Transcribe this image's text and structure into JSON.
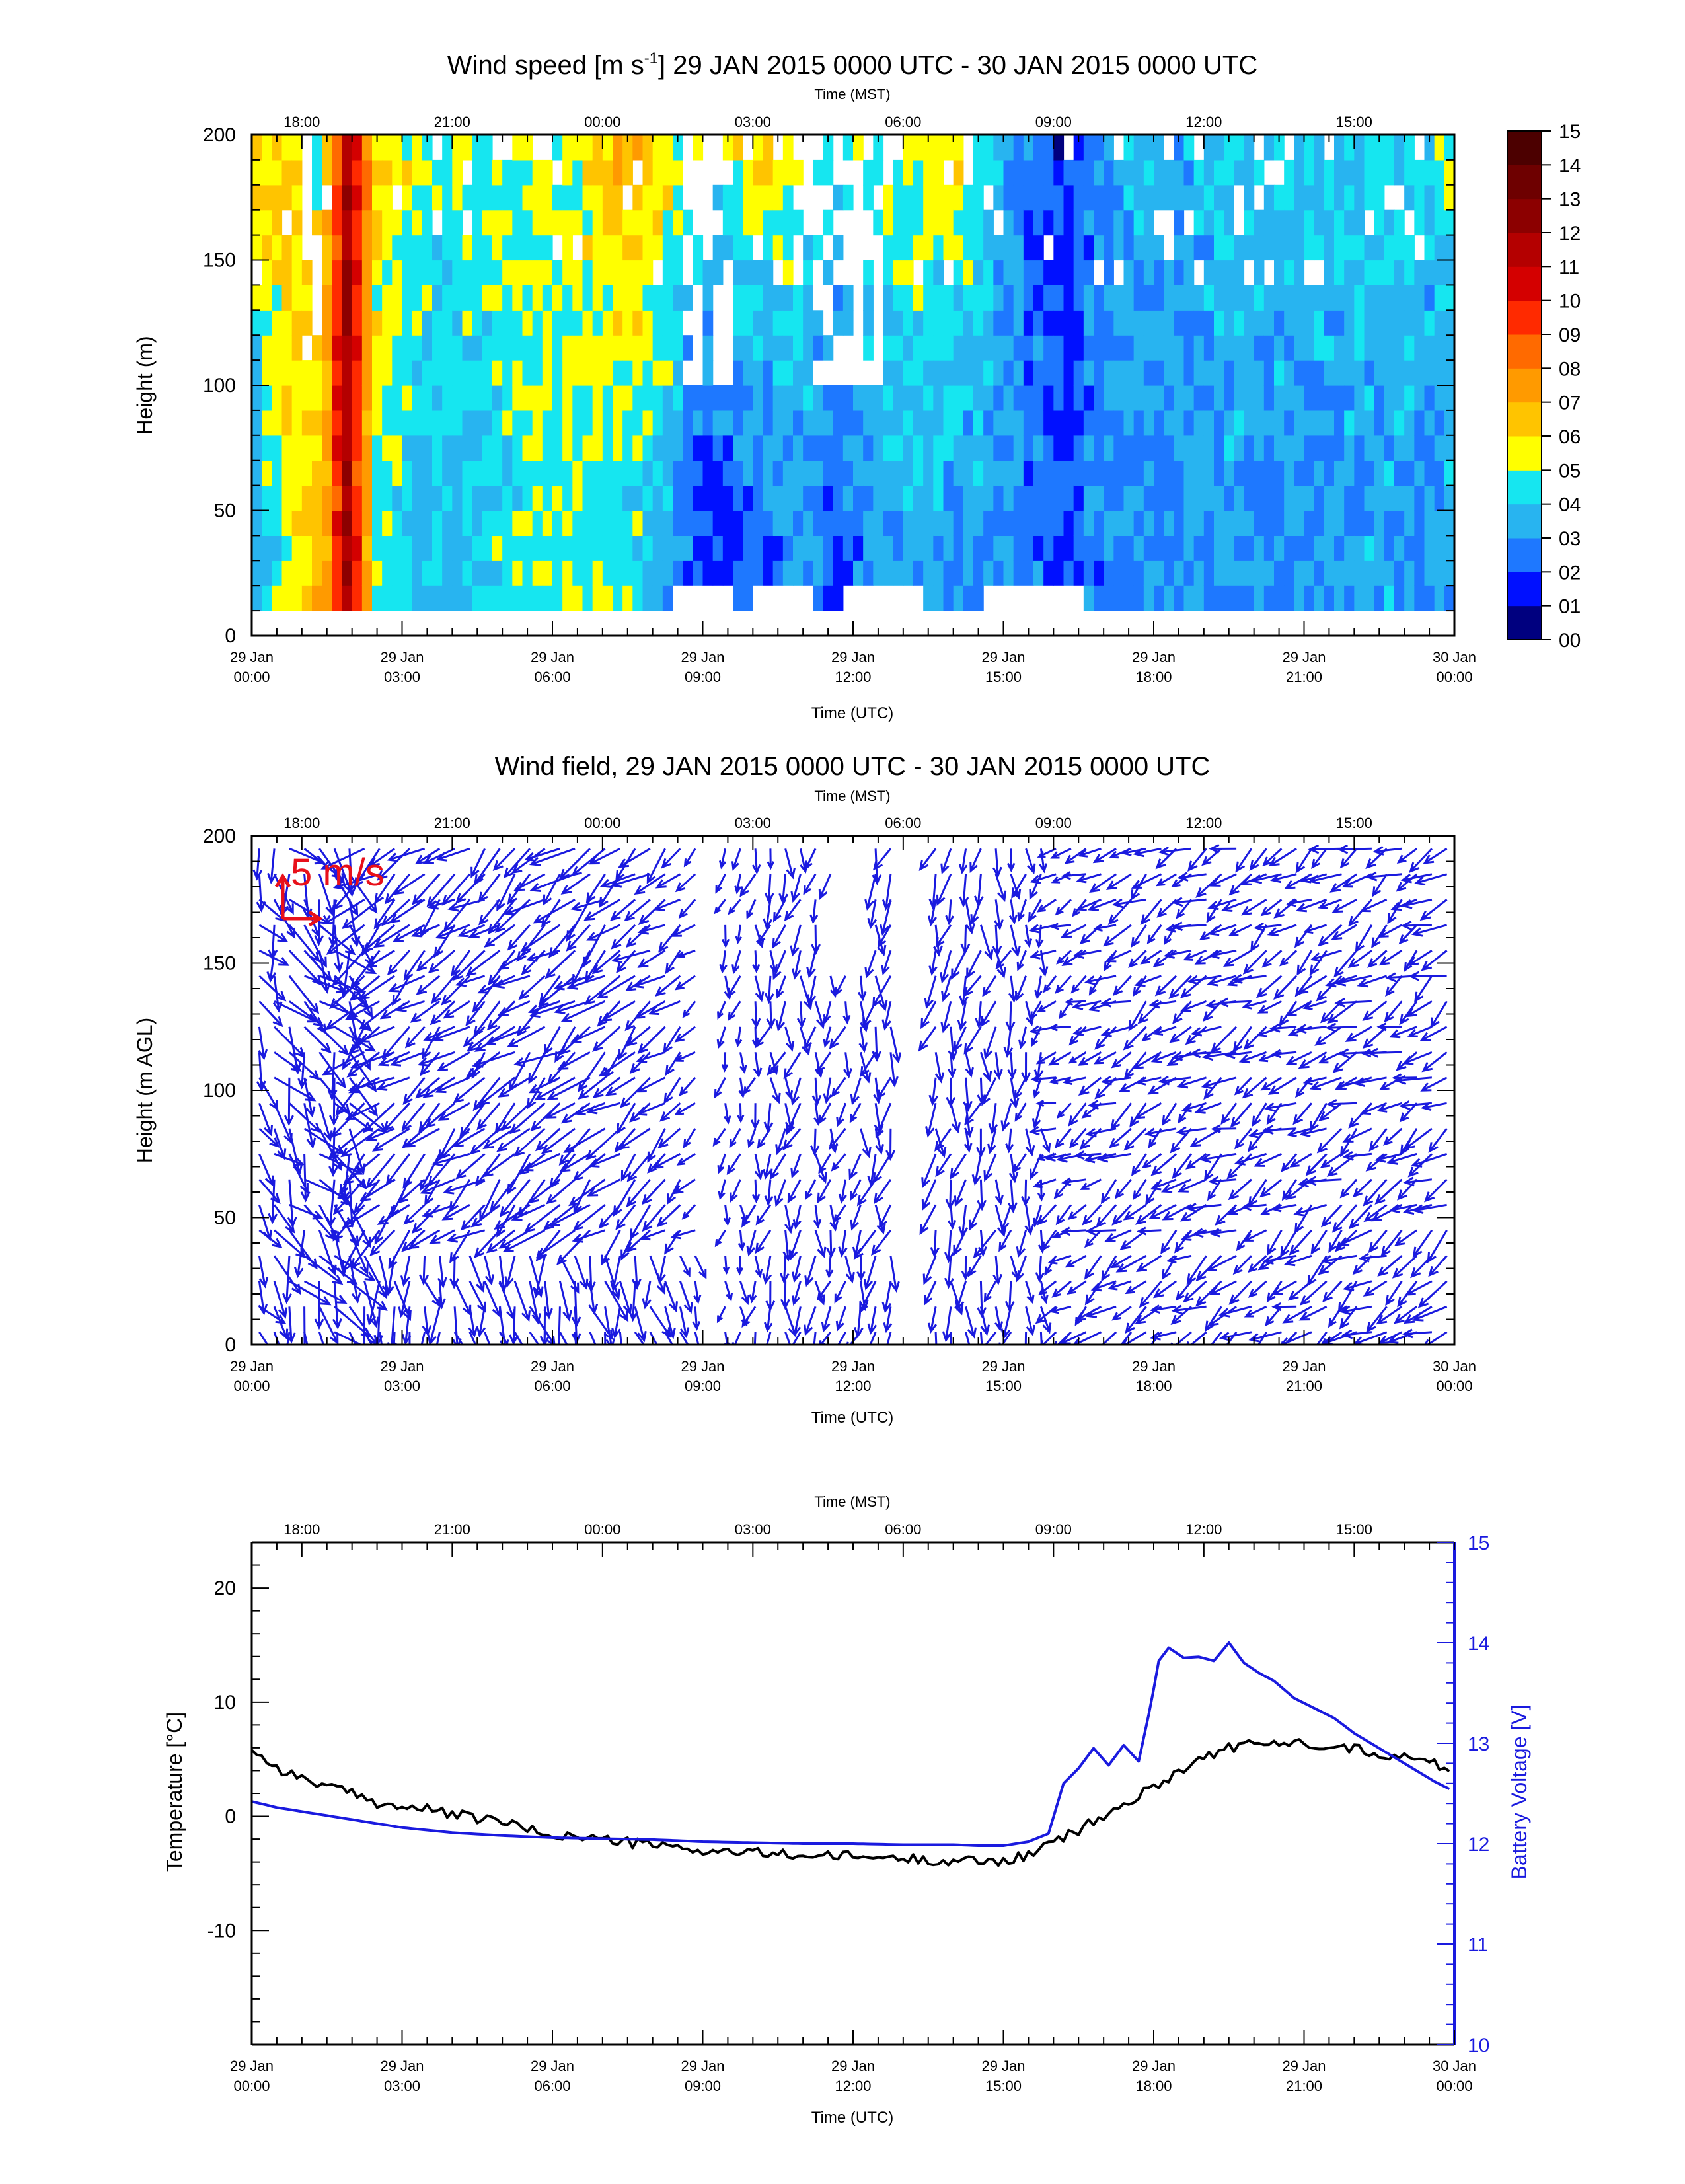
{
  "chart_data": [
    {
      "type": "heatmap",
      "title": "Wind speed [m s-1] 29 JAN 2015 0000 UTC - 30 JAN 2015 0000 UTC",
      "title_parts": {
        "pre": "Wind speed [m s",
        "sup": "-1",
        "post": "] 29 JAN 2015 0000 UTC - 30 JAN 2015 0000 UTC"
      },
      "xlabel": "Time (UTC)",
      "x2label": "Time (MST)",
      "ylabel": "Height (m)",
      "xlim_hours_utc": [
        0,
        24
      ],
      "ylim": [
        0,
        200
      ],
      "yticks": [
        0,
        50,
        100,
        150,
        200
      ],
      "xtick_labels": [
        [
          "29 Jan",
          "00:00"
        ],
        [
          "29 Jan",
          "03:00"
        ],
        [
          "29 Jan",
          "06:00"
        ],
        [
          "29 Jan",
          "09:00"
        ],
        [
          "29 Jan",
          "12:00"
        ],
        [
          "29 Jan",
          "15:00"
        ],
        [
          "29 Jan",
          "18:00"
        ],
        [
          "29 Jan",
          "21:00"
        ],
        [
          "30 Jan",
          "00:00"
        ]
      ],
      "x2tick_labels": [
        "18:00",
        "21:00",
        "00:00",
        "03:00",
        "06:00",
        "09:00",
        "12:00",
        "15:00"
      ],
      "colorbar": {
        "labels": [
          "00",
          "01",
          "02",
          "03",
          "04",
          "05",
          "06",
          "07",
          "08",
          "09",
          "10",
          "11",
          "12",
          "13",
          "14",
          "15"
        ],
        "colors": [
          "#00007f",
          "#0010ff",
          "#1e78ff",
          "#28b4f0",
          "#16e6f0",
          "#ffff00",
          "#ffc400",
          "#ff9a00",
          "#ff6a00",
          "#ff2a00",
          "#d40000",
          "#b40000",
          "#8c0000",
          "#6e0000",
          "#4c0000"
        ]
      },
      "time_profile_hours_utc": [
        0.0,
        0.6,
        1.4,
        1.9,
        2.5,
        3.5,
        4.5,
        5.6,
        6.8,
        7.7,
        8.4,
        9.0,
        9.6,
        10.4,
        11.0,
        11.7,
        12.4,
        13.2,
        14.0,
        14.8,
        15.5,
        16.2,
        16.9,
        17.6,
        18.5,
        19.6,
        20.6,
        21.6,
        22.5,
        23.4,
        24.0
      ],
      "speed_profile_m_s": [
        3.0,
        5.0,
        6.5,
        12.0,
        5.0,
        3.8,
        4.0,
        4.8,
        4.7,
        4.2,
        3.4,
        1.5,
        1.8,
        2.4,
        3.1,
        2.0,
        3.2,
        3.5,
        3.0,
        3.2,
        2.4,
        2.0,
        2.6,
        3.0,
        2.9,
        3.2,
        2.8,
        3.1,
        3.3,
        3.0,
        3.6
      ],
      "top_speed_m_s": [
        6.5,
        6.5,
        5.0,
        12.0,
        6.0,
        5.0,
        5.0,
        4.8,
        6.0,
        7.0,
        5.5,
        4.5,
        5.5,
        6.5,
        5.0,
        4.5,
        4.8,
        5.5,
        6.0,
        4.0,
        2.5,
        1.5,
        3.0,
        3.5,
        3.5,
        4.0,
        4.2,
        4.0,
        4.5,
        4.0,
        5.0
      ]
    },
    {
      "type": "quiver",
      "title": "Wind field, 29 JAN 2015 0000 UTC - 30 JAN 2015 0000 UTC",
      "xlabel": "Time (UTC)",
      "x2label": "Time (MST)",
      "ylabel": "Height (m AGL)",
      "xlim_hours_utc": [
        0,
        24
      ],
      "ylim": [
        0,
        200
      ],
      "yticks": [
        0,
        50,
        100,
        150,
        200
      ],
      "reference_vector_label": "5 m/s",
      "arrow_color": "#1a1adf",
      "reference_color": "#e8101a"
    },
    {
      "type": "line",
      "title": "",
      "xlabel": "Time (UTC)",
      "x2label": "Time (MST)",
      "ylabel": "Temperature [°C]",
      "y2label": "Battery Voltage [V]",
      "xlim_hours_utc": [
        0,
        24
      ],
      "ylim": [
        -20,
        24
      ],
      "y2lim": [
        10,
        15
      ],
      "yticks": [
        -10,
        0,
        10,
        20
      ],
      "y2ticks": [
        10,
        11,
        12,
        13,
        14,
        15
      ],
      "series": [
        {
          "name": "Temperature [°C]",
          "axis": "left",
          "color": "#000000",
          "x": [
            0.0,
            0.3,
            0.7,
            1.0,
            1.5,
            2.0,
            2.5,
            3.0,
            3.5,
            4.0,
            4.5,
            5.0,
            5.5,
            6.0,
            6.5,
            7.0,
            7.5,
            8.0,
            8.5,
            9.0,
            9.5,
            10.0,
            10.5,
            11.0,
            11.5,
            12.0,
            12.5,
            13.0,
            13.5,
            14.0,
            14.5,
            15.0,
            15.5,
            16.0,
            16.5,
            17.0,
            17.5,
            18.0,
            18.5,
            19.0,
            19.5,
            20.0,
            20.5,
            21.0,
            21.5,
            22.0,
            22.5,
            23.0,
            23.5,
            24.0
          ],
          "y": [
            6.0,
            4.8,
            3.8,
            3.4,
            2.6,
            2.0,
            1.2,
            0.8,
            0.6,
            0.2,
            -0.2,
            -0.4,
            -1.2,
            -1.6,
            -1.8,
            -2.0,
            -2.3,
            -2.5,
            -2.8,
            -3.0,
            -3.1,
            -3.2,
            -3.3,
            -3.4,
            -3.5,
            -3.5,
            -3.6,
            -3.7,
            -3.8,
            -3.9,
            -3.9,
            -3.9,
            -3.4,
            -2.3,
            -1.2,
            0.0,
            1.2,
            2.6,
            4.0,
            5.2,
            6.0,
            6.3,
            6.4,
            6.4,
            6.3,
            5.9,
            5.5,
            5.2,
            4.8,
            3.8
          ]
        },
        {
          "name": "Battery Voltage [V]",
          "axis": "right",
          "color": "#1a1adf",
          "x": [
            0.0,
            0.5,
            1.0,
            1.5,
            2.0,
            2.5,
            3.0,
            4.0,
            5.0,
            6.0,
            7.0,
            8.0,
            9.0,
            10.0,
            11.0,
            12.0,
            13.0,
            14.0,
            14.5,
            15.0,
            15.5,
            15.9,
            16.2,
            16.5,
            16.8,
            17.1,
            17.4,
            17.7,
            17.95,
            18.1,
            18.3,
            18.6,
            18.9,
            19.2,
            19.5,
            19.8,
            20.1,
            20.4,
            20.8,
            21.2,
            21.6,
            22.0,
            22.4,
            22.8,
            23.2,
            23.6,
            24.0
          ],
          "y": [
            12.42,
            12.36,
            12.32,
            12.28,
            12.24,
            12.2,
            12.16,
            12.11,
            12.08,
            12.06,
            12.05,
            12.04,
            12.02,
            12.01,
            12.0,
            12.0,
            11.99,
            11.99,
            11.98,
            11.98,
            12.02,
            12.1,
            12.6,
            12.75,
            12.95,
            12.78,
            12.98,
            12.82,
            13.4,
            13.82,
            13.95,
            13.85,
            13.86,
            13.82,
            14.0,
            13.8,
            13.7,
            13.62,
            13.45,
            13.35,
            13.25,
            13.1,
            12.98,
            12.86,
            12.74,
            12.62,
            12.52
          ]
        }
      ]
    }
  ]
}
